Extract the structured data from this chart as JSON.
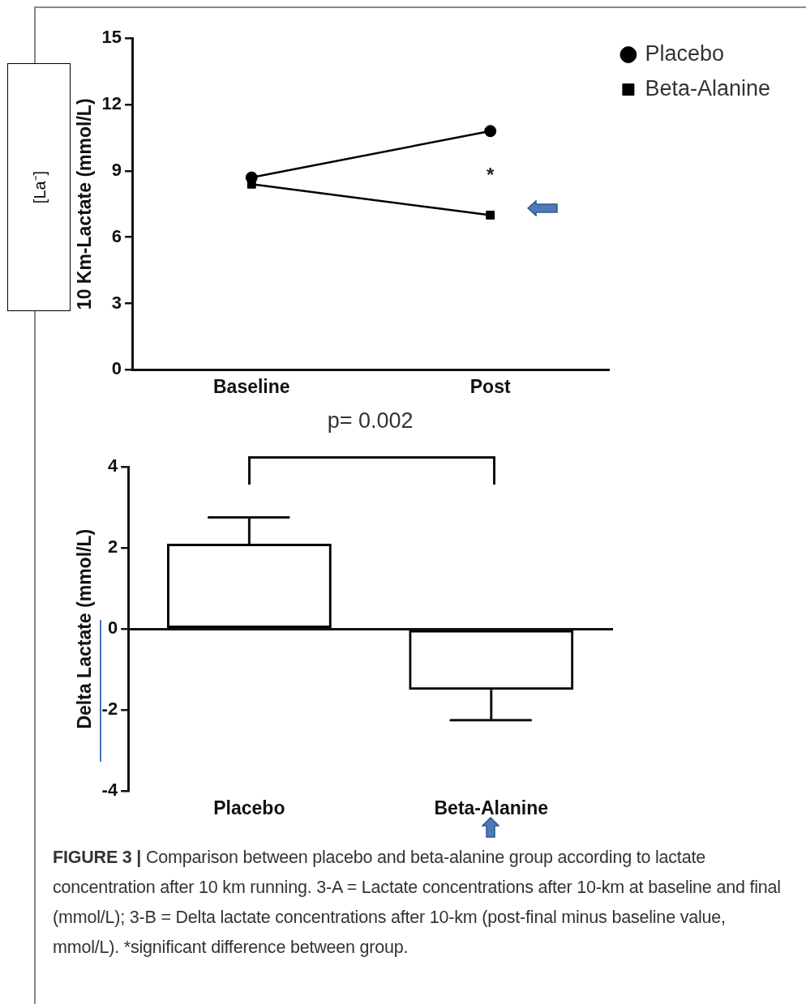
{
  "chart_data": [
    {
      "type": "line",
      "categories": [
        "Baseline",
        "Post"
      ],
      "ylabel": "10 Km-Lactate (mmol/L)",
      "series": [
        {
          "name": "Placebo",
          "color": "#000000",
          "marker": "circle",
          "values": [
            8.7,
            10.8
          ]
        },
        {
          "name": "Beta-Alanine",
          "color": "#000000",
          "marker": "square",
          "values": [
            8.4,
            7.0
          ]
        }
      ],
      "ylim": [
        0,
        15
      ],
      "yticks": [
        0,
        3,
        6,
        9,
        12,
        15
      ],
      "legend": "top right",
      "annotations": [
        "[La⁻]",
        "*"
      ]
    },
    {
      "type": "bar",
      "categories": [
        "Placebo",
        "Beta-Alanine"
      ],
      "ylabel": "Delta Lactate (mmol/L)",
      "values": [
        2.1,
        -1.5
      ],
      "errors": [
        [
          2.1,
          2.75
        ],
        [
          -2.25,
          -1.5
        ]
      ],
      "color": "#000000",
      "ylim": [
        -4,
        4
      ],
      "yticks": [
        -4,
        -2,
        0,
        2,
        4
      ],
      "annotations": [
        "p= 0.002",
        "FIGURE 3 |",
        "Comparison between placebo and beta-alanine group according to lactate concentration after 10 km running. 3-A = Lactate concentrations after 10-km at baseline and final (mmol/L); 3-B = Delta lactate concentrations after 10-km (post-final minus baseline value, mmol/L). *significant difference between group."
      ]
    }
  ]
}
